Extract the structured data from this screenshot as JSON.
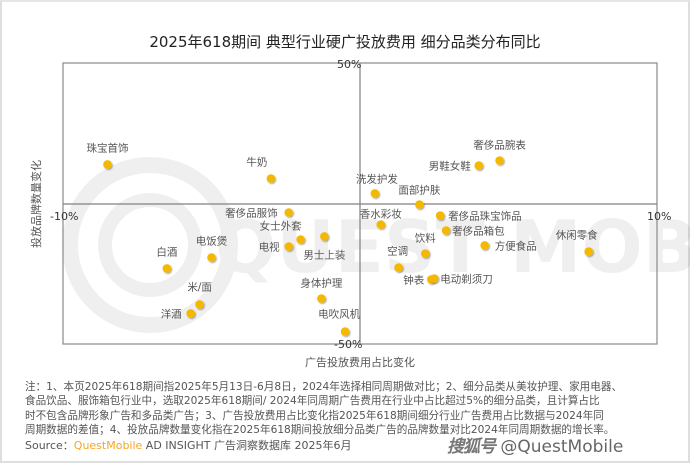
{
  "title": "2025年618期间 典型行业硬广投放费用 细分品类分布同比",
  "chart_data": {
    "type": "scatter",
    "title": "2025年618期间 典型行业硬广投放费用 细分品类分布同比",
    "xlabel": "广告投放费用占比变化",
    "ylabel": "投放品牌数量变化",
    "xlim": [
      -10,
      10
    ],
    "ylim": [
      -50,
      50
    ],
    "x_unit": "%",
    "y_unit": "%",
    "tick_labels": {
      "x_min": "-10%",
      "x_max": "10%",
      "y_min": "-50%",
      "y_max": "50%"
    },
    "grid": false,
    "marker_color": "#f5b800",
    "points": [
      {
        "label": "珠宝首饰",
        "x": -8.5,
        "y": 13.9
      },
      {
        "label": "牛奶",
        "x": -3.0,
        "y": 8.9
      },
      {
        "label": "洗发护发",
        "x": 0.5,
        "y": 3.6
      },
      {
        "label": "面部护肤",
        "x": 2.0,
        "y": -0.4
      },
      {
        "label": "男鞋女鞋",
        "x": 4.0,
        "y": 13.5
      },
      {
        "label": "奢侈品腕表",
        "x": 4.7,
        "y": 15.3
      },
      {
        "label": "奢侈品服饰",
        "x": -2.4,
        "y": -3.2
      },
      {
        "label": "女士外套",
        "x": -2.0,
        "y": -12.8
      },
      {
        "label": "电视",
        "x": -2.4,
        "y": -15.3
      },
      {
        "label": "男士上装",
        "x": -1.2,
        "y": -11.7
      },
      {
        "label": "香水彩妆",
        "x": 0.7,
        "y": -7.5
      },
      {
        "label": "奢侈品珠宝饰品",
        "x": 2.7,
        "y": -4.3
      },
      {
        "label": "奢侈品箱包",
        "x": 2.9,
        "y": -9.6
      },
      {
        "label": "饮料",
        "x": 2.2,
        "y": -17.8
      },
      {
        "label": "方便食品",
        "x": 4.2,
        "y": -14.9
      },
      {
        "label": "休闲零食",
        "x": 7.7,
        "y": -17.1
      },
      {
        "label": "空调",
        "x": 1.3,
        "y": -22.8
      },
      {
        "label": "钟表",
        "x": 2.4,
        "y": -27.0
      },
      {
        "label": "电动剃须刀",
        "x": 2.5,
        "y": -26.7
      },
      {
        "label": "白酒",
        "x": -6.5,
        "y": -23.1
      },
      {
        "label": "电饭煲",
        "x": -5.0,
        "y": -19.2
      },
      {
        "label": "米/面",
        "x": -5.4,
        "y": -35.9
      },
      {
        "label": "洋酒",
        "x": -5.7,
        "y": -39.1
      },
      {
        "label": "身体护理",
        "x": -1.3,
        "y": -33.8
      },
      {
        "label": "电吹风机",
        "x": -0.5,
        "y": -45.6
      }
    ]
  },
  "notes": {
    "line1": "注：1、本页2025年618期间指2025年5月13日-6月8日，2024年选择相同周期做对比；2、细分品类从美妆护理、家用电器、",
    "line2": "食品饮品、服饰箱包行业中，选取2025年618期间/ 2024年同周期广告费用在行业中占比超过5%的细分品类，且计算占比",
    "line3": "时不包含品牌形象广告和多品类广告；3、广告投放费用占比变化指2025年618期间细分行业广告费用占比数据与2024年同",
    "line4": "周期数据的差值；4、投放品牌数量变化指在2025年618期间投放细分品类广告的品牌数量对比2024年同周期数据的增长率。"
  },
  "source": {
    "prefix": "Source：",
    "brand": "QuestMobile",
    "rest": " AD INSIGHT 广告洞察数据库 2025年6月"
  },
  "watermark": {
    "platform": "搜狐号",
    "handle": "@QuestMobile"
  },
  "colors": {
    "marker": "#f5b800",
    "brand": "#f5a623",
    "axis": "#808080"
  }
}
